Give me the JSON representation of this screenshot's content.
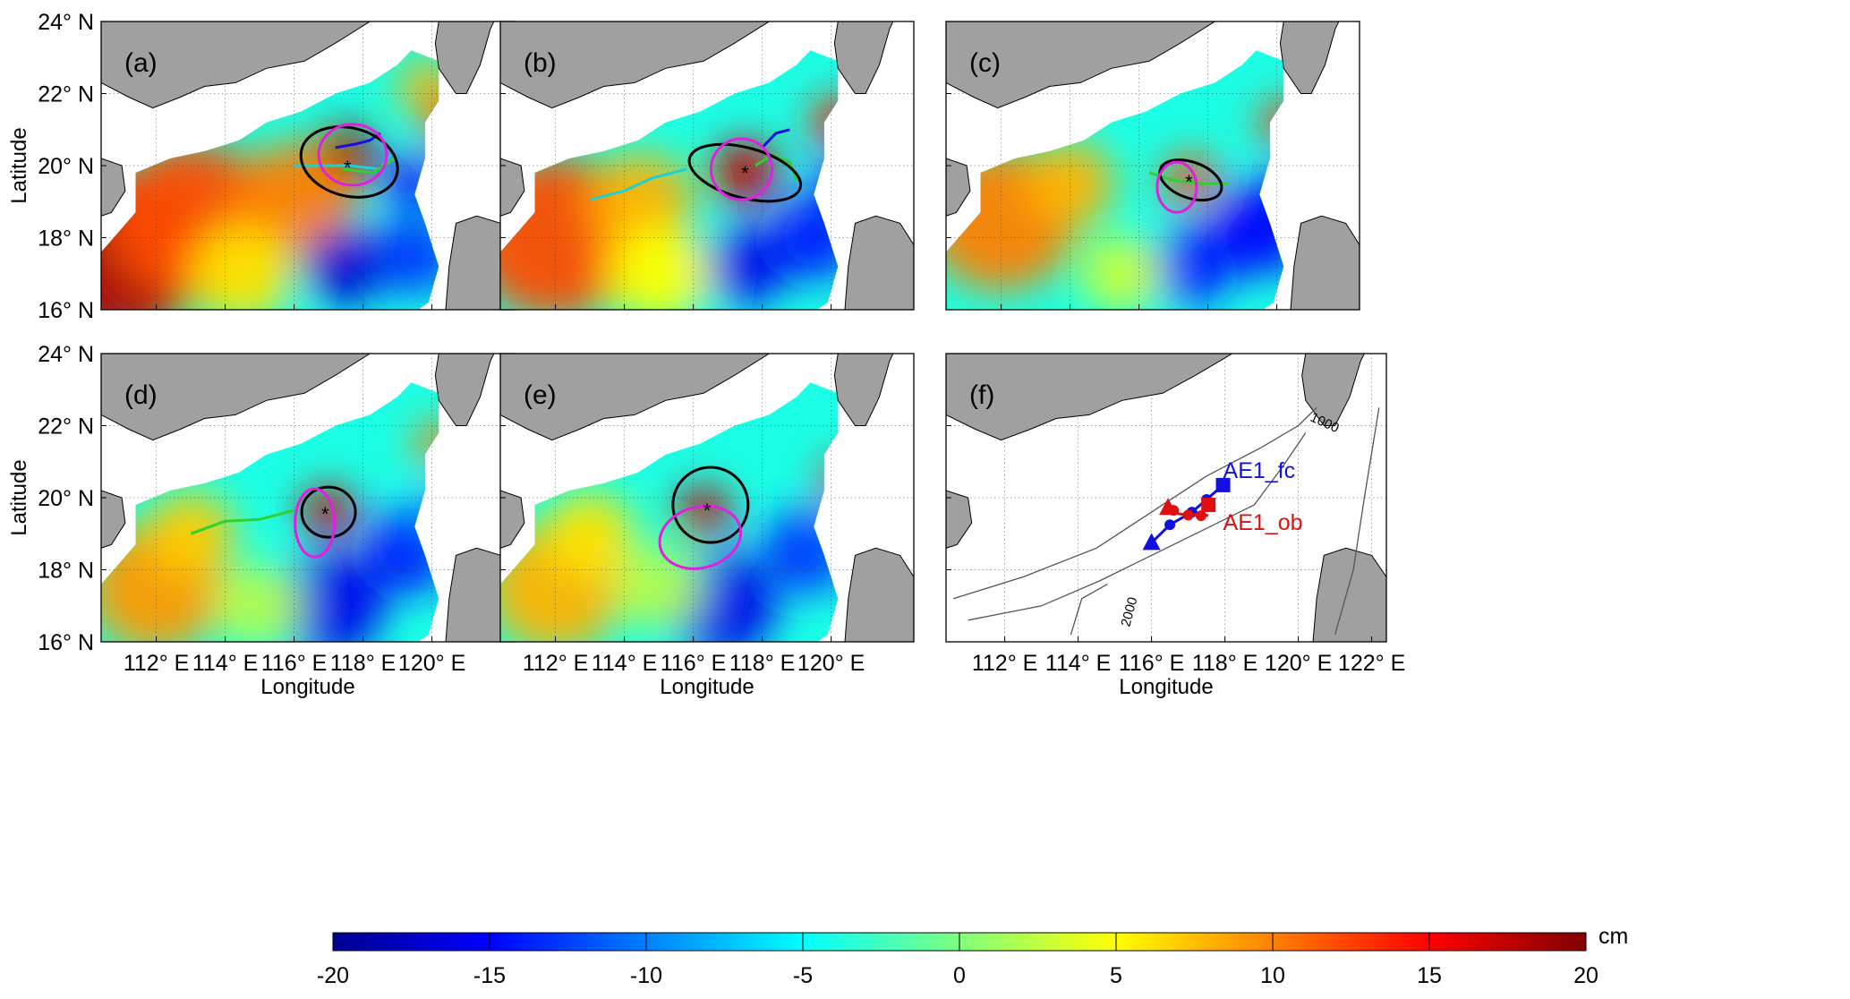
{
  "figure": {
    "axis_labels": {
      "latitude": "Latitude",
      "longitude": "Longitude"
    },
    "lat_ticks": [
      {
        "value": 16,
        "label": "16° N"
      },
      {
        "value": 18,
        "label": "18° N"
      },
      {
        "value": 20,
        "label": "20° N"
      },
      {
        "value": 22,
        "label": "22° N"
      },
      {
        "value": 24,
        "label": "24° N"
      }
    ],
    "lon_ticks_a_e": [
      {
        "value": 112,
        "label": "112° E"
      },
      {
        "value": 114,
        "label": "114° E"
      },
      {
        "value": 116,
        "label": "116° E"
      },
      {
        "value": 118,
        "label": "118° E"
      },
      {
        "value": 120,
        "label": "120° E"
      }
    ],
    "lon_ticks_f": [
      {
        "value": 112,
        "label": "112° E"
      },
      {
        "value": 114,
        "label": "114° E"
      },
      {
        "value": 116,
        "label": "116° E"
      },
      {
        "value": 118,
        "label": "118° E"
      },
      {
        "value": 120,
        "label": "120° E"
      },
      {
        "value": 122,
        "label": "122° E"
      }
    ],
    "lon_range": [
      110.4,
      122.4
    ],
    "lat_range": [
      16,
      24
    ],
    "panels": [
      {
        "id": "a",
        "label": "(a)"
      },
      {
        "id": "b",
        "label": "(b)"
      },
      {
        "id": "c",
        "label": "(c)"
      },
      {
        "id": "d",
        "label": "(d)"
      },
      {
        "id": "e",
        "label": "(e)"
      },
      {
        "id": "f",
        "label": "(f)"
      }
    ],
    "panel_f": {
      "fc_label": "AE1_fc",
      "ob_label": "AE1_ob",
      "fc_color": "#1010e0",
      "ob_color": "#e01010",
      "isobaths": [
        {
          "value": 1000,
          "label": "1000"
        },
        {
          "value": 2000,
          "label": "2000"
        }
      ]
    },
    "colorbar": {
      "unit": "cm",
      "min": -20,
      "max": 20,
      "tick_labels": [
        "-20",
        "-15",
        "-10",
        "-5",
        "0",
        "5",
        "10",
        "15",
        "20"
      ],
      "colormap": "jet"
    },
    "colors": {
      "land": "#a0a0a0",
      "eddy_edge": "#000000",
      "magenta_contour": "#e020e0",
      "track_blue": "#1010e0",
      "track_green": "#30d030",
      "track_cyan": "#20d0d0"
    }
  }
}
